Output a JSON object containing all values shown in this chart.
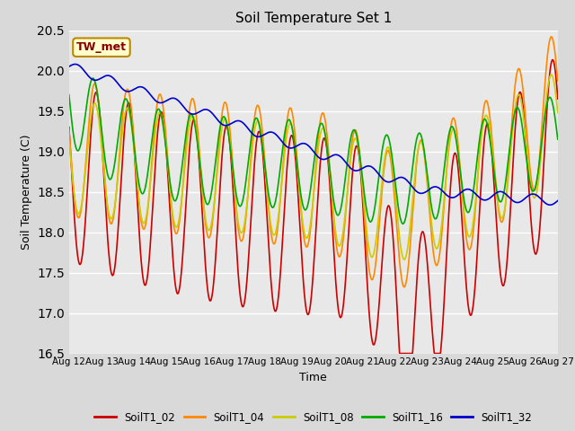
{
  "title": "Soil Temperature Set 1",
  "xlabel": "Time",
  "ylabel": "Soil Temperature (C)",
  "ylim": [
    16.5,
    20.5
  ],
  "xlim": [
    0,
    360
  ],
  "fig_bg": "#d9d9d9",
  "plot_bg": "#e8e8e8",
  "grid_color": "#ffffff",
  "annotation_text": "TW_met",
  "annotation_bg": "#ffffcc",
  "annotation_border": "#bb8800",
  "annotation_text_color": "#880000",
  "x_tick_labels": [
    "Aug 12",
    "Aug 13",
    "Aug 14",
    "Aug 15",
    "Aug 16",
    "Aug 17",
    "Aug 18",
    "Aug 19",
    "Aug 20",
    "Aug 21",
    "Aug 22",
    "Aug 23",
    "Aug 24",
    "Aug 25",
    "Aug 26",
    "Aug 27"
  ],
  "x_tick_positions": [
    0,
    24,
    48,
    72,
    96,
    120,
    144,
    168,
    192,
    216,
    240,
    264,
    288,
    312,
    336,
    360
  ],
  "y_ticks": [
    16.5,
    17.0,
    17.5,
    18.0,
    18.5,
    19.0,
    19.5,
    20.0,
    20.5
  ],
  "series_colors": [
    "#cc0000",
    "#ff8800",
    "#cccc00",
    "#00aa00",
    "#0000cc"
  ],
  "series_labels": [
    "SoilT1_02",
    "SoilT1_04",
    "SoilT1_08",
    "SoilT1_16",
    "SoilT1_32"
  ]
}
